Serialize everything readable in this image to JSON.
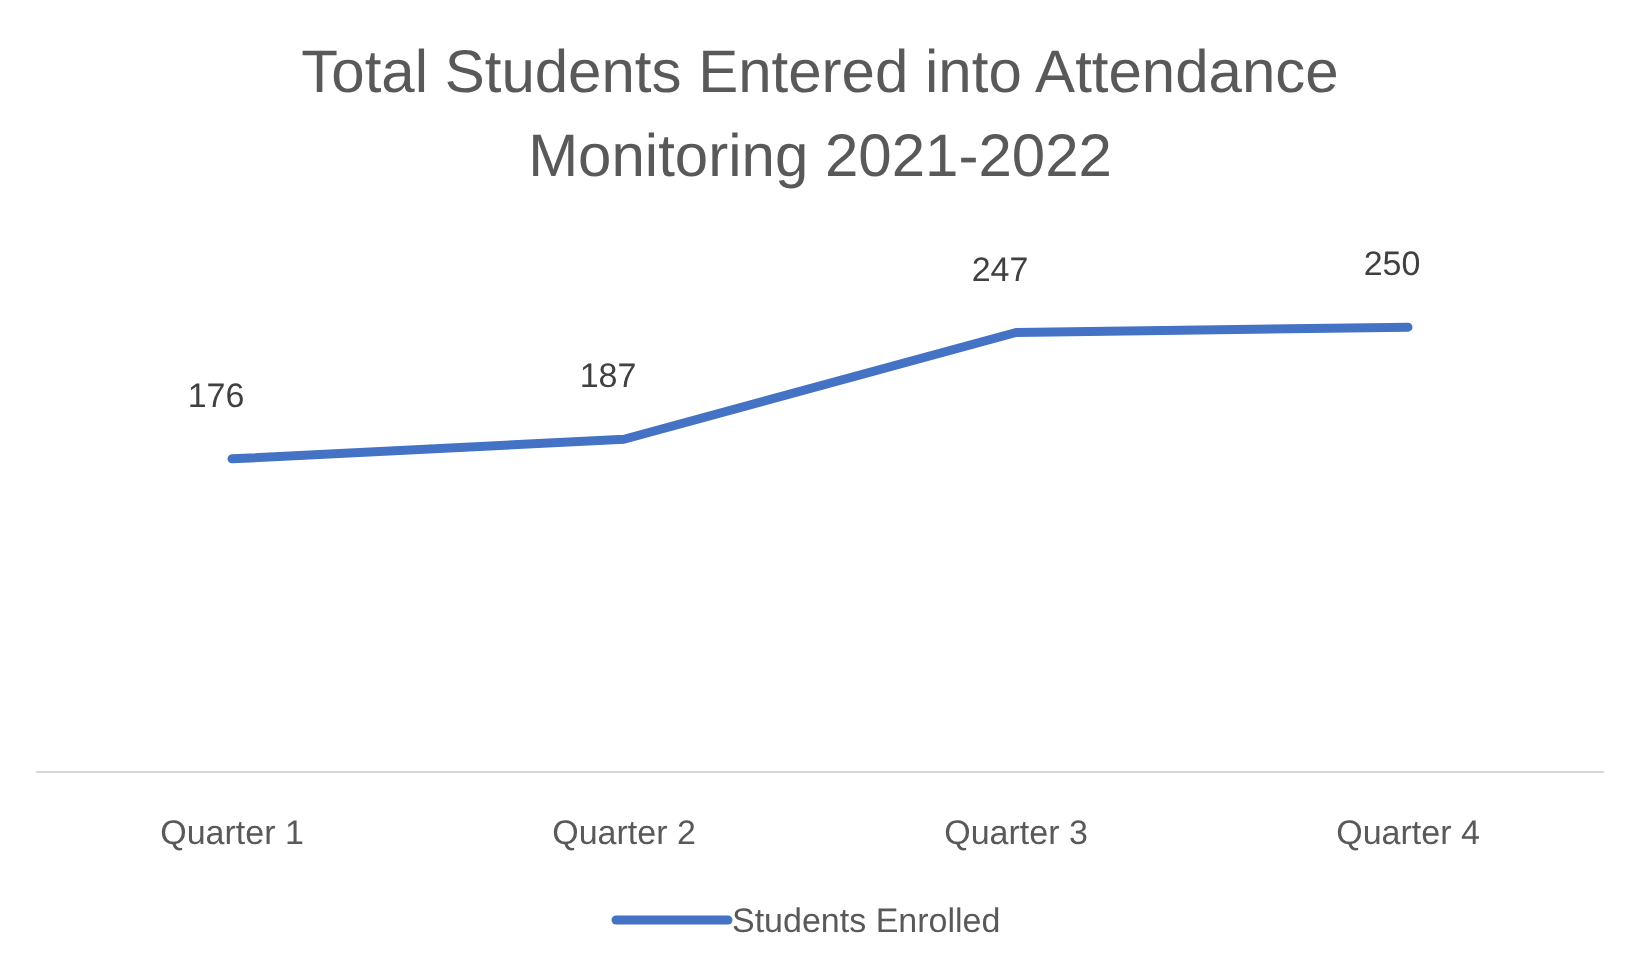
{
  "chart_data": {
    "type": "line",
    "title": "Total Students Entered into Attendance Monitoring 2021-2022",
    "categories": [
      "Quarter 1",
      "Quarter 2",
      "Quarter 3",
      "Quarter 4"
    ],
    "series": [
      {
        "name": "Students Enrolled",
        "color": "#4472c4",
        "values": [
          176,
          187,
          247,
          250
        ]
      }
    ],
    "data_labels": true,
    "grid": false,
    "legend": "bottom",
    "marker": "none",
    "line_style": "solid"
  }
}
